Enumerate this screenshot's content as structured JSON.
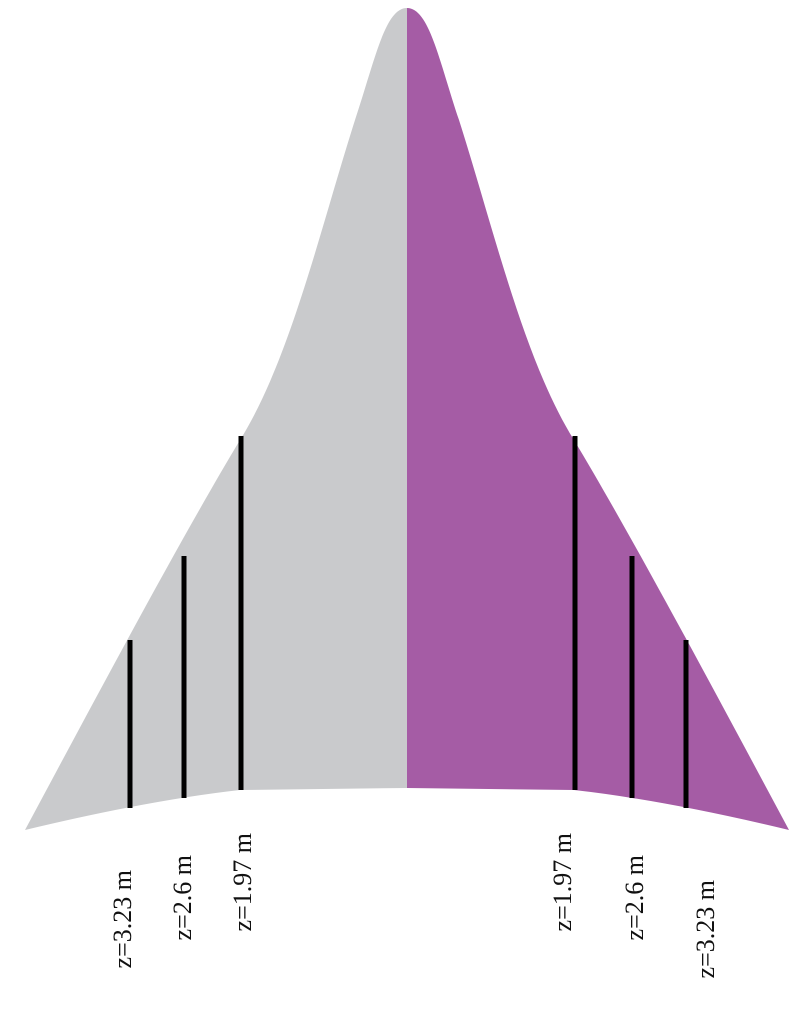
{
  "labels": {
    "left": [
      "z=3.23 m",
      "z=2.6 m",
      "z=1.97 m"
    ],
    "right": [
      "z=1.97 m",
      "z=2.6 m",
      "z=3.23 m"
    ]
  }
}
